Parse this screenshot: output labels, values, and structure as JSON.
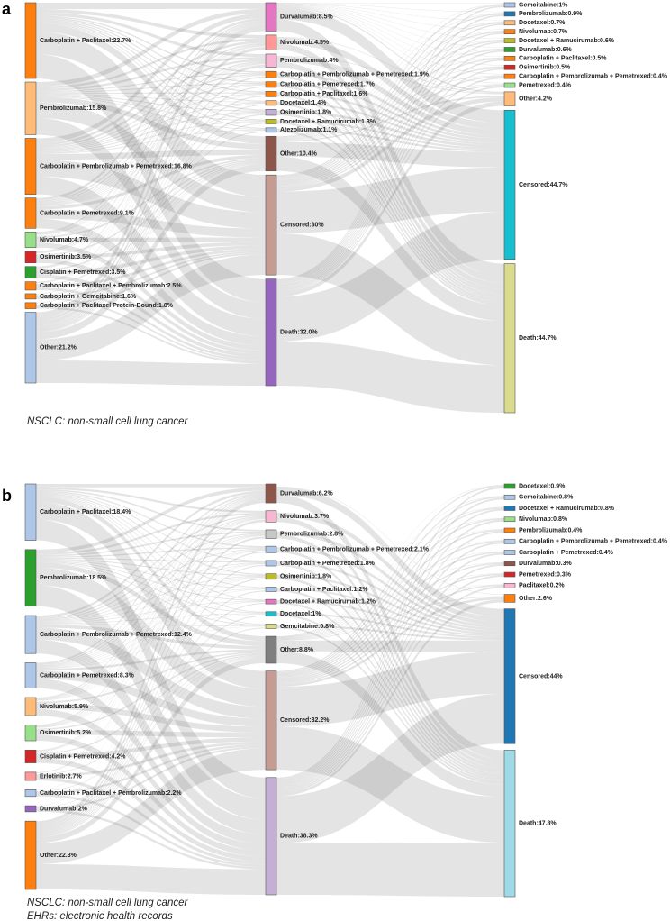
{
  "chart_data": [
    {
      "type": "sankey",
      "panel": "a",
      "note": [
        "NSCLC: non-small cell lung cancer"
      ],
      "columns": [
        {
          "labels": [
            "Carboplatin + Paclitaxel:22.7%",
            "Pembrolizumab:15.8%",
            "Carboplatin + Pembrolizumab + Pemetrexed:16.8%",
            "Carboplatin + Pemetrexed:9.1%",
            "Nivolumab:4.7%",
            "Osimertinib:3.5%",
            "Cisplatin + Pemetrexed:3.5%",
            "Carboplatin + Paclitaxel + Pembrolizumab:2.5%",
            "Carboplatin + Gemcitabine:1.6%",
            "Carboplatin + Paclitaxel Protein-Bound:1.8%",
            "Other:21.2%"
          ],
          "values": [
            22.7,
            15.8,
            16.8,
            9.1,
            4.7,
            3.5,
            3.5,
            2.5,
            1.6,
            1.8,
            21.2
          ],
          "colors": [
            "#ff7f0e",
            "#ffbb78",
            "#ff7f0e",
            "#ff7f0e",
            "#98df8a",
            "#d62728",
            "#2ca02c",
            "#ff7f0e",
            "#ff7f0e",
            "#ff7f0e",
            "#aec7e8"
          ]
        },
        {
          "labels": [
            "Durvalumab:8.5%",
            "Nivolumab:4.5%",
            "Pembrolizumab:4%",
            "Carboplatin + Pembrolizumab + Pemetrexed:1.9%",
            "Carboplatin + Pemetrexed:1.7%",
            "Carboplatin + Paclitaxel:1.6%",
            "Docetaxel:1.4%",
            "Osimertinib:1.8%",
            "Docetaxel + Ramucirumab:1.3%",
            "Atezolizumab:1.1%",
            "Other:10.4%",
            "Censored:30%",
            "Death:32.0%"
          ],
          "values": [
            8.5,
            4.5,
            4,
            1.9,
            1.7,
            1.6,
            1.4,
            1.8,
            1.3,
            1.1,
            10.4,
            30,
            32.0
          ],
          "colors": [
            "#e377c2",
            "#ff9896",
            "#f7b6d2",
            "#ff7f0e",
            "#ff7f0e",
            "#ff7f0e",
            "#ffbb78",
            "#c5b0d5",
            "#bcbd22",
            "#aec7e8",
            "#8c564b",
            "#c49c94",
            "#9467bd"
          ]
        },
        {
          "labels": [
            "Gemcitabine:1%",
            "Pembrolizumab:0.9%",
            "Docetaxel:0.7%",
            "Nivolumab:0.7%",
            "Docetaxel + Ramucirumab:0.6%",
            "Durvalumab:0.6%",
            "Carboplatin + Paclitaxel:0.5%",
            "Osimertinib:0.5%",
            "Carboplatin + Pembrolizumab + Pemetrexed:0.4%",
            "Pemetrexed:0.4%",
            "Other:4.2%",
            "Censored:44.7%",
            "Death:44.7%"
          ],
          "values": [
            1,
            0.9,
            0.7,
            0.7,
            0.6,
            0.6,
            0.5,
            0.5,
            0.4,
            0.4,
            4.2,
            44.7,
            44.7
          ],
          "colors": [
            "#aec7e8",
            "#1f77b4",
            "#ffbb78",
            "#ff7f0e",
            "#bcbd22",
            "#2ca02c",
            "#ff7f0e",
            "#d62728",
            "#ff7f0e",
            "#98df8a",
            "#ffbb78",
            "#17becf",
            "#dbdb8d"
          ]
        }
      ]
    },
    {
      "type": "sankey",
      "panel": "b",
      "note": [
        "NSCLC: non-small cell lung cancer",
        "EHRs: electronic health records"
      ],
      "columns": [
        {
          "labels": [
            "Carboplatin + Paclitaxel:18.4%",
            "Pembrolizumab:18.5%",
            "Carboplatin + Pembrolizumab + Pemetrexed:12.4%",
            "Carboplatin + Pemetrexed:8.3%",
            "Nivolumab:5.9%",
            "Osimertinib:5.2%",
            "Cisplatin + Pemetrexed:4.2%",
            "Erlotinib:2.7%",
            "Carboplatin + Paclitaxel + Pembrolizumab:2.2%",
            "Durvalumab:2%",
            "Other:22.3%"
          ],
          "values": [
            18.4,
            18.5,
            12.4,
            8.3,
            5.9,
            5.2,
            4.2,
            2.7,
            2.2,
            2,
            22.3
          ],
          "colors": [
            "#aec7e8",
            "#2ca02c",
            "#aec7e8",
            "#aec7e8",
            "#ffbb78",
            "#98df8a",
            "#d62728",
            "#ff9896",
            "#aec7e8",
            "#9467bd",
            "#ff7f0e"
          ]
        },
        {
          "labels": [
            "Durvalumab:6.2%",
            "Nivolumab:3.7%",
            "Pembrolizumab:2.8%",
            "Carboplatin + Pembrolizumab + Pemetrexed:2.1%",
            "Carboplatin + Pemetrexed:1.8%",
            "Osimertinib:1.8%",
            "Carboplatin + Paclitaxel:1.2%",
            "Docetaxel + Ramucirumab:1.2%",
            "Docetaxel:1%",
            "Gemcitabine:0.8%",
            "Other:8.8%",
            "Censored:32.2%",
            "Death:38.3%"
          ],
          "values": [
            6.2,
            3.7,
            2.8,
            2.1,
            1.8,
            1.8,
            1.2,
            1.2,
            1,
            0.8,
            8.8,
            32.2,
            38.3
          ],
          "colors": [
            "#8c564b",
            "#f7b6d2",
            "#c7c7c7",
            "#aec7e8",
            "#aec7e8",
            "#bcbd22",
            "#aec7e8",
            "#e377c2",
            "#17becf",
            "#dbdb8d",
            "#7f7f7f",
            "#c49c94",
            "#c5b0d5"
          ]
        },
        {
          "labels": [
            "Docetaxel:0.9%",
            "Gemcitabine:0.8%",
            "Docetaxel + Ramucirumab:0.8%",
            "Nivolumab:0.8%",
            "Pembrolizumab:0.4%",
            "Carboplatin + Pembrolizumab + Pemetrexed:0.4%",
            "Carboplatin + Pemetrexed:0.4%",
            "Durvalumab:0.3%",
            "Pemetrexed:0.3%",
            "Paclitaxel:0.2%",
            "Other:2.6%",
            "Censored:44%",
            "Death:47.8%"
          ],
          "values": [
            0.9,
            0.8,
            0.8,
            0.8,
            0.4,
            0.4,
            0.4,
            0.3,
            0.3,
            0.2,
            2.6,
            44,
            47.8
          ],
          "colors": [
            "#2ca02c",
            "#aec7e8",
            "#1f77b4",
            "#98df8a",
            "#ff7f0e",
            "#aec7e8",
            "#aec7e8",
            "#8c564b",
            "#d62728",
            "#f7b6d2",
            "#ff7f0e",
            "#1f77b4",
            "#9edae5"
          ]
        }
      ]
    }
  ]
}
